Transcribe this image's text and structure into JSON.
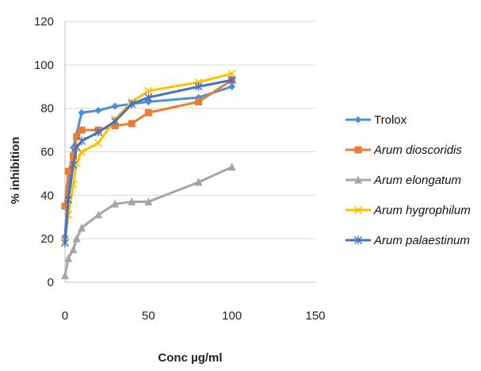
{
  "chart_data": {
    "type": "line",
    "title": "",
    "xlabel": "Conc µg/ml",
    "ylabel": "% inhibition",
    "xlim": [
      0,
      150
    ],
    "ylim": [
      0,
      120
    ],
    "xticks": [
      0,
      50,
      100,
      150
    ],
    "yticks": [
      0,
      20,
      40,
      60,
      80,
      100,
      120
    ],
    "grid": "horizontal",
    "legend_position": "right",
    "series": [
      {
        "name": "Trolox",
        "italic": false,
        "color": "#4a90d9",
        "marker": "diamond",
        "x": [
          0,
          2,
          5,
          10,
          20,
          30,
          40,
          50,
          80,
          100
        ],
        "y": [
          21,
          44,
          62,
          78,
          79,
          81,
          82,
          83,
          85,
          90
        ]
      },
      {
        "name": "Arum dioscoridis",
        "italic": true,
        "color": "#ed7d31",
        "marker": "square",
        "x": [
          0,
          2,
          5,
          7,
          10,
          20,
          30,
          40,
          50,
          80,
          100
        ],
        "y": [
          35,
          51,
          58,
          67,
          70,
          70,
          72,
          73,
          78,
          83,
          93
        ]
      },
      {
        "name": "Arum elongatum",
        "italic": true,
        "color": "#a5a5a5",
        "marker": "triangle",
        "x": [
          0,
          2,
          5,
          7,
          10,
          20,
          30,
          40,
          50,
          80,
          100
        ],
        "y": [
          3,
          11,
          15,
          20,
          25,
          31,
          36,
          37,
          37,
          46,
          53
        ]
      },
      {
        "name": "Arum hygrophilum",
        "italic": true,
        "color": "#ffc000",
        "marker": "x",
        "x": [
          0,
          2,
          5,
          7,
          10,
          20,
          30,
          40,
          50,
          80,
          100
        ],
        "y": [
          19,
          31,
          45,
          55,
          60,
          64,
          75,
          83,
          88,
          92,
          96
        ]
      },
      {
        "name": "Arum palaestinum",
        "italic": true,
        "color": "#4472c4",
        "marker": "star",
        "x": [
          0,
          2,
          5,
          7,
          10,
          20,
          30,
          40,
          50,
          80,
          100
        ],
        "y": [
          18,
          38,
          54,
          62,
          65,
          69,
          74,
          82,
          85,
          90,
          93
        ]
      }
    ]
  }
}
